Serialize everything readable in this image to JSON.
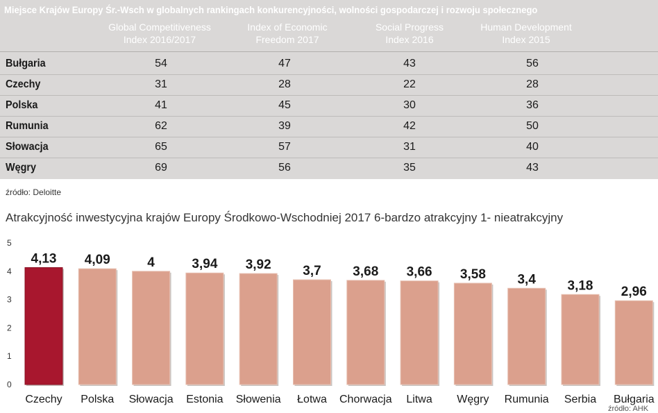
{
  "table": {
    "title": "Miejsce Krajów Europy Śr.-Wsch w globalnych rankingach konkurencyjności, wolności gospodarczej i rozwoju społecznego",
    "columns": [
      {
        "line1": "Global Competitiveness",
        "line2": "Index 2016/2017"
      },
      {
        "line1": "Index of Economic",
        "line2": "Freedom 2017"
      },
      {
        "line1": "Social Progress",
        "line2": "Index 2016"
      },
      {
        "line1": "Human Development",
        "line2": "Index 2015"
      }
    ],
    "rows": [
      {
        "country": "Bułgaria",
        "values": [
          "54",
          "47",
          "43",
          "56"
        ]
      },
      {
        "country": "Czechy",
        "values": [
          "31",
          "28",
          "22",
          "28"
        ]
      },
      {
        "country": "Polska",
        "values": [
          "41",
          "45",
          "30",
          "36"
        ]
      },
      {
        "country": "Rumunia",
        "values": [
          "62",
          "39",
          "42",
          "50"
        ]
      },
      {
        "country": "Słowacja",
        "values": [
          "65",
          "57",
          "31",
          "40"
        ]
      },
      {
        "country": "Węgry",
        "values": [
          "69",
          "56",
          "35",
          "43"
        ]
      }
    ],
    "source": "źródło: Deloitte"
  },
  "colors": {
    "highlight": "#a8172e",
    "bar": "#dba08d",
    "panel": "#dad8d7"
  },
  "chart_data": {
    "type": "bar",
    "title": "Atrakcyjność inwestycyjna krajów Europy Środkowo-Wschodniej 2017 6-bardzo atrakcyjny 1- nieatrakcyjny",
    "categories": [
      "Czechy",
      "Polska",
      "Słowacja",
      "Estonia",
      "Słowenia",
      "Łotwa",
      "Chorwacja",
      "Litwa",
      "Węgry",
      "Rumunia",
      "Serbia",
      "Bułgaria"
    ],
    "values": [
      4.13,
      4.09,
      4,
      3.94,
      3.92,
      3.7,
      3.68,
      3.66,
      3.58,
      3.4,
      3.18,
      2.96
    ],
    "value_labels": [
      "4,13",
      "4,09",
      "4",
      "3,94",
      "3,92",
      "3,7",
      "3,68",
      "3,66",
      "3,58",
      "3,4",
      "3,18",
      "2,96"
    ],
    "highlight_index": 0,
    "ylim": [
      0,
      5
    ],
    "yticks": [
      "0",
      "1",
      "2",
      "3",
      "4",
      "5"
    ],
    "xlabel": "",
    "ylabel": "",
    "grid": false,
    "source": "źródło: AHK"
  }
}
